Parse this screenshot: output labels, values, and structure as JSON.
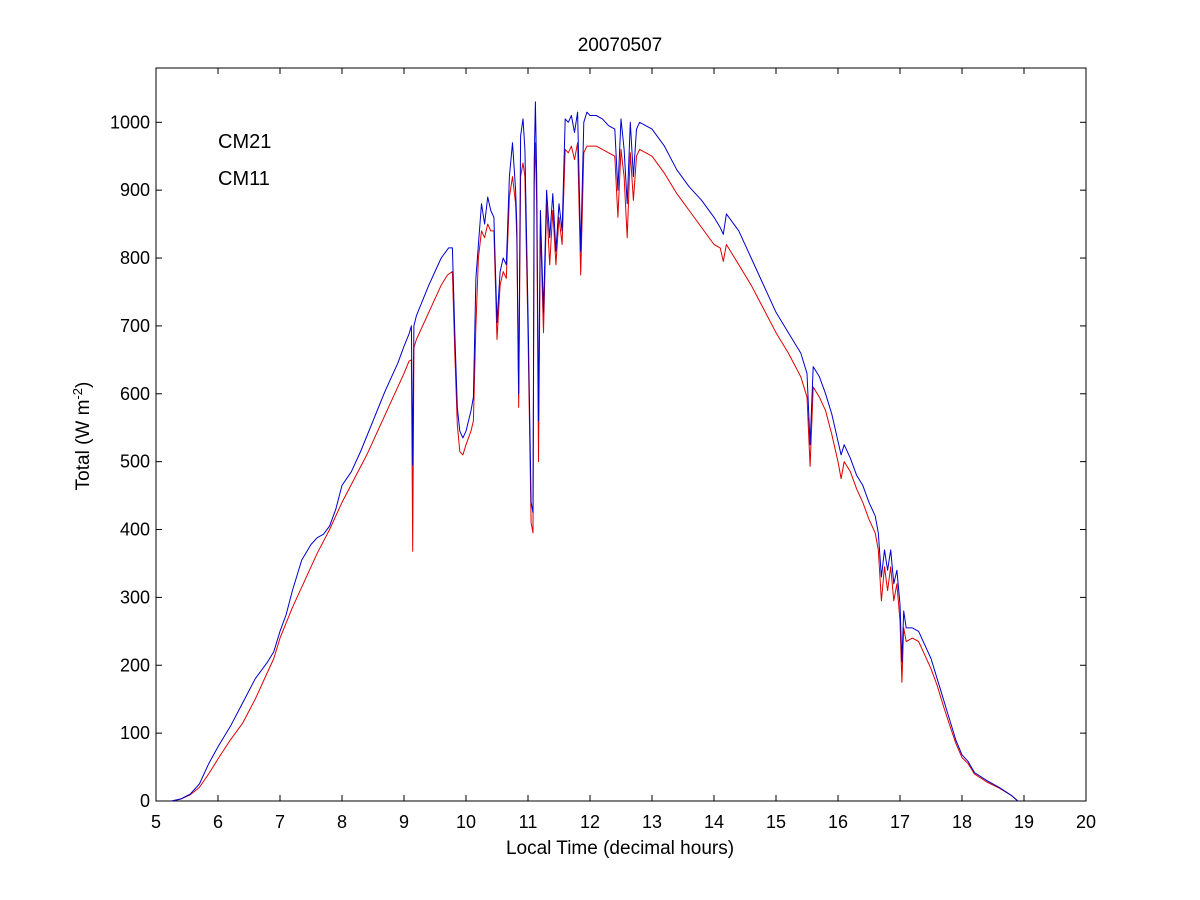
{
  "chart_data": {
    "type": "line",
    "title": "20070507",
    "xlabel": "Local Time (decimal hours)",
    "ylabel": {
      "text": "Total (W m",
      "superscript": "-2",
      "suffix": ")"
    },
    "xlim": [
      5,
      20
    ],
    "ylim": [
      0,
      1080
    ],
    "xticks": [
      "5",
      "6",
      "7",
      "8",
      "9",
      "10",
      "11",
      "12",
      "13",
      "14",
      "15",
      "16",
      "17",
      "18",
      "19",
      "20"
    ],
    "yticks": [
      "0",
      "100",
      "200",
      "300",
      "400",
      "500",
      "600",
      "700",
      "800",
      "900",
      "1000"
    ],
    "xtick_values": [
      5,
      6,
      7,
      8,
      9,
      10,
      11,
      12,
      13,
      14,
      15,
      16,
      17,
      18,
      19,
      20
    ],
    "ytick_values": [
      0,
      100,
      200,
      300,
      400,
      500,
      600,
      700,
      800,
      900,
      1000
    ],
    "legend_position": "top-left",
    "series": [
      {
        "name": "CM21",
        "color": "#0000cc",
        "points": [
          [
            5.25,
            0
          ],
          [
            5.4,
            3
          ],
          [
            5.55,
            10
          ],
          [
            5.7,
            25
          ],
          [
            5.85,
            55
          ],
          [
            6.0,
            80
          ],
          [
            6.2,
            110
          ],
          [
            6.4,
            145
          ],
          [
            6.6,
            180
          ],
          [
            6.8,
            205
          ],
          [
            6.9,
            220
          ],
          [
            7.0,
            250
          ],
          [
            7.1,
            275
          ],
          [
            7.2,
            310
          ],
          [
            7.35,
            355
          ],
          [
            7.5,
            378
          ],
          [
            7.6,
            388
          ],
          [
            7.7,
            393
          ],
          [
            7.8,
            405
          ],
          [
            7.9,
            430
          ],
          [
            8.0,
            465
          ],
          [
            8.15,
            485
          ],
          [
            8.3,
            515
          ],
          [
            8.5,
            560
          ],
          [
            8.7,
            605
          ],
          [
            8.9,
            645
          ],
          [
            9.0,
            670
          ],
          [
            9.08,
            688
          ],
          [
            9.12,
            700
          ],
          [
            9.14,
            495
          ],
          [
            9.16,
            700
          ],
          [
            9.2,
            715
          ],
          [
            9.4,
            760
          ],
          [
            9.6,
            800
          ],
          [
            9.72,
            815
          ],
          [
            9.78,
            815
          ],
          [
            9.82,
            690
          ],
          [
            9.86,
            580
          ],
          [
            9.9,
            545
          ],
          [
            9.95,
            535
          ],
          [
            10.0,
            545
          ],
          [
            10.08,
            575
          ],
          [
            10.12,
            595
          ],
          [
            10.16,
            770
          ],
          [
            10.2,
            820
          ],
          [
            10.25,
            880
          ],
          [
            10.3,
            850
          ],
          [
            10.35,
            890
          ],
          [
            10.4,
            870
          ],
          [
            10.45,
            860
          ],
          [
            10.5,
            705
          ],
          [
            10.55,
            780
          ],
          [
            10.6,
            800
          ],
          [
            10.65,
            790
          ],
          [
            10.7,
            920
          ],
          [
            10.75,
            970
          ],
          [
            10.8,
            900
          ],
          [
            10.82,
            850
          ],
          [
            10.85,
            600
          ],
          [
            10.88,
            980
          ],
          [
            10.92,
            1005
          ],
          [
            10.95,
            960
          ],
          [
            11.0,
            720
          ],
          [
            11.05,
            440
          ],
          [
            11.08,
            425
          ],
          [
            11.1,
            940
          ],
          [
            11.12,
            1030
          ],
          [
            11.14,
            920
          ],
          [
            11.17,
            560
          ],
          [
            11.2,
            870
          ],
          [
            11.25,
            720
          ],
          [
            11.3,
            900
          ],
          [
            11.35,
            830
          ],
          [
            11.4,
            895
          ],
          [
            11.45,
            810
          ],
          [
            11.5,
            880
          ],
          [
            11.55,
            840
          ],
          [
            11.6,
            1005
          ],
          [
            11.65,
            1000
          ],
          [
            11.7,
            1010
          ],
          [
            11.75,
            985
          ],
          [
            11.8,
            1015
          ],
          [
            11.85,
            810
          ],
          [
            11.9,
            1000
          ],
          [
            11.95,
            1015
          ],
          [
            12.0,
            1010
          ],
          [
            12.1,
            1010
          ],
          [
            12.2,
            1005
          ],
          [
            12.3,
            995
          ],
          [
            12.4,
            990
          ],
          [
            12.45,
            900
          ],
          [
            12.5,
            1005
          ],
          [
            12.55,
            960
          ],
          [
            12.6,
            880
          ],
          [
            12.65,
            1000
          ],
          [
            12.7,
            920
          ],
          [
            12.75,
            990
          ],
          [
            12.8,
            1000
          ],
          [
            12.9,
            995
          ],
          [
            13.0,
            990
          ],
          [
            13.2,
            965
          ],
          [
            13.4,
            930
          ],
          [
            13.6,
            905
          ],
          [
            13.8,
            885
          ],
          [
            14.0,
            860
          ],
          [
            14.1,
            845
          ],
          [
            14.15,
            835
          ],
          [
            14.2,
            865
          ],
          [
            14.4,
            840
          ],
          [
            14.6,
            800
          ],
          [
            14.8,
            760
          ],
          [
            15.0,
            720
          ],
          [
            15.2,
            690
          ],
          [
            15.4,
            660
          ],
          [
            15.5,
            630
          ],
          [
            15.55,
            525
          ],
          [
            15.6,
            640
          ],
          [
            15.7,
            625
          ],
          [
            15.8,
            600
          ],
          [
            15.9,
            570
          ],
          [
            16.0,
            530
          ],
          [
            16.05,
            510
          ],
          [
            16.1,
            525
          ],
          [
            16.2,
            505
          ],
          [
            16.3,
            480
          ],
          [
            16.4,
            465
          ],
          [
            16.5,
            440
          ],
          [
            16.6,
            420
          ],
          [
            16.65,
            395
          ],
          [
            16.7,
            330
          ],
          [
            16.75,
            370
          ],
          [
            16.8,
            340
          ],
          [
            16.85,
            370
          ],
          [
            16.9,
            320
          ],
          [
            16.95,
            340
          ],
          [
            17.0,
            290
          ],
          [
            17.03,
            205
          ],
          [
            17.06,
            280
          ],
          [
            17.1,
            255
          ],
          [
            17.2,
            255
          ],
          [
            17.3,
            250
          ],
          [
            17.4,
            230
          ],
          [
            17.5,
            210
          ],
          [
            17.6,
            180
          ],
          [
            17.7,
            150
          ],
          [
            17.8,
            120
          ],
          [
            17.9,
            90
          ],
          [
            18.0,
            68
          ],
          [
            18.1,
            58
          ],
          [
            18.2,
            42
          ],
          [
            18.4,
            30
          ],
          [
            18.6,
            20
          ],
          [
            18.8,
            8
          ],
          [
            18.9,
            0
          ]
        ]
      },
      {
        "name": "CM11",
        "color": "#dd0000",
        "points": [
          [
            5.25,
            0
          ],
          [
            5.4,
            3
          ],
          [
            5.55,
            9
          ],
          [
            5.7,
            20
          ],
          [
            5.85,
            40
          ],
          [
            6.0,
            62
          ],
          [
            6.2,
            90
          ],
          [
            6.4,
            115
          ],
          [
            6.6,
            150
          ],
          [
            6.8,
            190
          ],
          [
            6.9,
            210
          ],
          [
            7.0,
            240
          ],
          [
            7.2,
            285
          ],
          [
            7.4,
            325
          ],
          [
            7.6,
            365
          ],
          [
            7.8,
            400
          ],
          [
            8.0,
            440
          ],
          [
            8.2,
            475
          ],
          [
            8.4,
            510
          ],
          [
            8.6,
            550
          ],
          [
            8.8,
            590
          ],
          [
            9.0,
            630
          ],
          [
            9.08,
            648
          ],
          [
            9.12,
            650
          ],
          [
            9.14,
            368
          ],
          [
            9.16,
            668
          ],
          [
            9.2,
            680
          ],
          [
            9.4,
            720
          ],
          [
            9.6,
            760
          ],
          [
            9.7,
            775
          ],
          [
            9.78,
            780
          ],
          [
            9.82,
            660
          ],
          [
            9.86,
            555
          ],
          [
            9.9,
            515
          ],
          [
            9.95,
            510
          ],
          [
            10.0,
            525
          ],
          [
            10.08,
            545
          ],
          [
            10.12,
            560
          ],
          [
            10.16,
            700
          ],
          [
            10.2,
            800
          ],
          [
            10.25,
            840
          ],
          [
            10.3,
            830
          ],
          [
            10.35,
            850
          ],
          [
            10.4,
            840
          ],
          [
            10.45,
            840
          ],
          [
            10.5,
            680
          ],
          [
            10.55,
            760
          ],
          [
            10.6,
            780
          ],
          [
            10.65,
            770
          ],
          [
            10.7,
            890
          ],
          [
            10.75,
            920
          ],
          [
            10.8,
            880
          ],
          [
            10.82,
            830
          ],
          [
            10.85,
            580
          ],
          [
            10.88,
            920
          ],
          [
            10.92,
            940
          ],
          [
            10.95,
            920
          ],
          [
            11.0,
            690
          ],
          [
            11.05,
            410
          ],
          [
            11.08,
            395
          ],
          [
            11.1,
            910
          ],
          [
            11.12,
            970
          ],
          [
            11.14,
            880
          ],
          [
            11.17,
            500
          ],
          [
            11.2,
            850
          ],
          [
            11.25,
            690
          ],
          [
            11.3,
            880
          ],
          [
            11.35,
            790
          ],
          [
            11.4,
            870
          ],
          [
            11.45,
            790
          ],
          [
            11.5,
            860
          ],
          [
            11.55,
            820
          ],
          [
            11.6,
            960
          ],
          [
            11.65,
            955
          ],
          [
            11.7,
            965
          ],
          [
            11.75,
            945
          ],
          [
            11.8,
            970
          ],
          [
            11.85,
            775
          ],
          [
            11.9,
            955
          ],
          [
            11.95,
            965
          ],
          [
            12.0,
            965
          ],
          [
            12.1,
            965
          ],
          [
            12.2,
            960
          ],
          [
            12.3,
            955
          ],
          [
            12.4,
            950
          ],
          [
            12.45,
            860
          ],
          [
            12.5,
            960
          ],
          [
            12.55,
            920
          ],
          [
            12.6,
            830
          ],
          [
            12.65,
            955
          ],
          [
            12.7,
            885
          ],
          [
            12.75,
            950
          ],
          [
            12.8,
            960
          ],
          [
            12.9,
            955
          ],
          [
            13.0,
            950
          ],
          [
            13.2,
            925
          ],
          [
            13.4,
            895
          ],
          [
            13.6,
            870
          ],
          [
            13.8,
            845
          ],
          [
            14.0,
            820
          ],
          [
            14.1,
            815
          ],
          [
            14.15,
            795
          ],
          [
            14.2,
            820
          ],
          [
            14.4,
            790
          ],
          [
            14.6,
            760
          ],
          [
            14.8,
            725
          ],
          [
            15.0,
            690
          ],
          [
            15.2,
            660
          ],
          [
            15.4,
            625
          ],
          [
            15.5,
            595
          ],
          [
            15.55,
            493
          ],
          [
            15.6,
            610
          ],
          [
            15.7,
            595
          ],
          [
            15.8,
            575
          ],
          [
            15.9,
            540
          ],
          [
            16.0,
            500
          ],
          [
            16.05,
            475
          ],
          [
            16.1,
            500
          ],
          [
            16.2,
            485
          ],
          [
            16.3,
            460
          ],
          [
            16.4,
            440
          ],
          [
            16.5,
            415
          ],
          [
            16.6,
            395
          ],
          [
            16.65,
            370
          ],
          [
            16.7,
            295
          ],
          [
            16.75,
            345
          ],
          [
            16.8,
            310
          ],
          [
            16.85,
            345
          ],
          [
            16.9,
            295
          ],
          [
            16.95,
            320
          ],
          [
            17.0,
            265
          ],
          [
            17.03,
            175
          ],
          [
            17.06,
            255
          ],
          [
            17.1,
            235
          ],
          [
            17.2,
            240
          ],
          [
            17.3,
            235
          ],
          [
            17.4,
            215
          ],
          [
            17.5,
            195
          ],
          [
            17.6,
            170
          ],
          [
            17.7,
            140
          ],
          [
            17.8,
            112
          ],
          [
            17.9,
            85
          ],
          [
            18.0,
            64
          ],
          [
            18.1,
            55
          ],
          [
            18.2,
            40
          ],
          [
            18.4,
            28
          ],
          [
            18.6,
            19
          ],
          [
            18.8,
            8
          ],
          [
            18.9,
            0
          ]
        ]
      }
    ]
  }
}
